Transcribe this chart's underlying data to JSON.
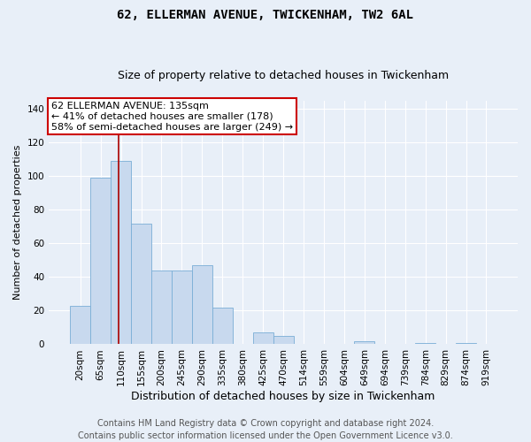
{
  "title": "62, ELLERMAN AVENUE, TWICKENHAM, TW2 6AL",
  "subtitle": "Size of property relative to detached houses in Twickenham",
  "xlabel": "Distribution of detached houses by size in Twickenham",
  "ylabel": "Number of detached properties",
  "bar_values": [
    23,
    99,
    109,
    72,
    44,
    44,
    47,
    22,
    0,
    7,
    5,
    0,
    0,
    0,
    2,
    0,
    0,
    1,
    0,
    1,
    0
  ],
  "bar_labels": [
    "20sqm",
    "65sqm",
    "110sqm",
    "155sqm",
    "200sqm",
    "245sqm",
    "290sqm",
    "335sqm",
    "380sqm",
    "425sqm",
    "470sqm",
    "514sqm",
    "559sqm",
    "604sqm",
    "649sqm",
    "694sqm",
    "739sqm",
    "784sqm",
    "829sqm",
    "874sqm",
    "919sqm"
  ],
  "bar_color": "#c8d9ee",
  "bar_edge_color": "#7aaed6",
  "ylim": [
    0,
    145
  ],
  "yticks": [
    0,
    20,
    40,
    60,
    80,
    100,
    120,
    140
  ],
  "property_label": "62 ELLERMAN AVENUE: 135sqm",
  "annotation_line1": "← 41% of detached houses are smaller (178)",
  "annotation_line2": "58% of semi-detached houses are larger (249) →",
  "vline_color": "#aa0000",
  "vline_x_index": 1.9,
  "annotation_box_color": "#ffffff",
  "annotation_box_edge": "#cc0000",
  "footer1": "Contains HM Land Registry data © Crown copyright and database right 2024.",
  "footer2": "Contains public sector information licensed under the Open Government Licence v3.0.",
  "background_color": "#e8eff8",
  "grid_color": "#ffffff",
  "title_fontsize": 10,
  "subtitle_fontsize": 9,
  "xlabel_fontsize": 9,
  "ylabel_fontsize": 8,
  "tick_fontsize": 7.5,
  "annotation_fontsize": 8,
  "footer_fontsize": 7
}
